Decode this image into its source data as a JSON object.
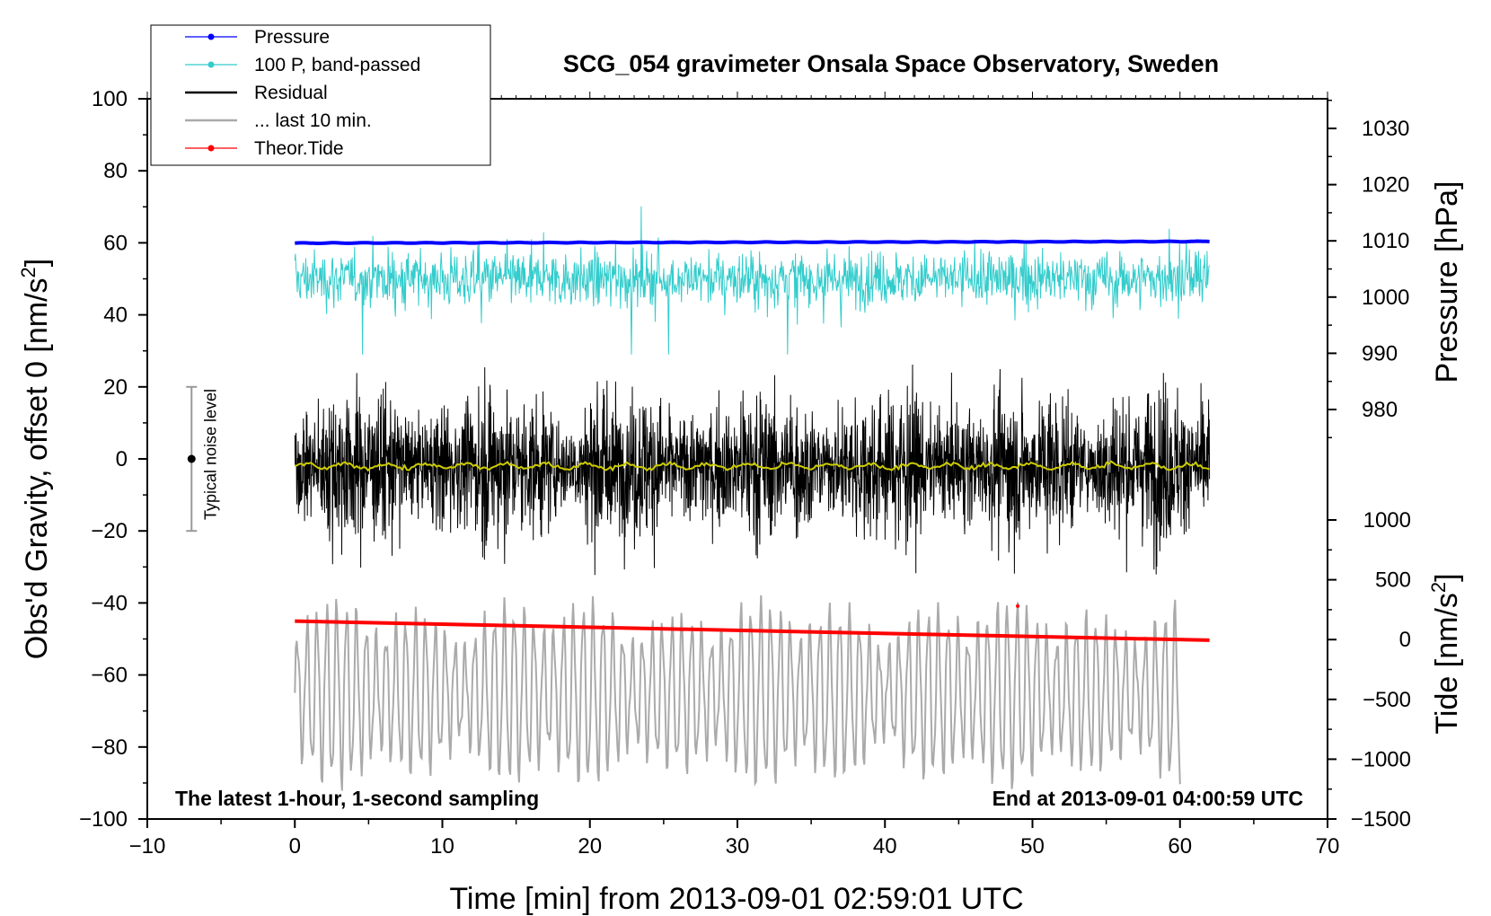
{
  "chart_data": {
    "type": "line",
    "title": "SCG_054 gravimeter Onsala Space Observatory, Sweden",
    "xlabel": "Time [min] from 2013-09-01 02:59:01 UTC",
    "ylabel_left_prefix": "Obs'd Gravity, offset 0 [nm/s",
    "ylabel_left_sup": "2",
    "ylabel_left_suffix": "]",
    "ylabel_pressure": "Pressure [hPa]",
    "ylabel_tide_prefix": "Tide [nm/s",
    "ylabel_tide_sup": "2",
    "ylabel_tide_suffix": "]",
    "xlim": [
      -10,
      70
    ],
    "ylim_left": [
      -100,
      100
    ],
    "x_ticks": [
      -10,
      0,
      10,
      20,
      30,
      40,
      50,
      60,
      70
    ],
    "x_tick_labels": [
      "−10",
      "0",
      "10",
      "20",
      "30",
      "40",
      "50",
      "60",
      "70"
    ],
    "y_left_ticks": [
      -100,
      -80,
      -60,
      -40,
      -20,
      0,
      20,
      40,
      60,
      80,
      100
    ],
    "y_left_tick_labels": [
      "−100",
      "−80",
      "−60",
      "−40",
      "−20",
      "0",
      "20",
      "40",
      "60",
      "80",
      "100"
    ],
    "pressure_axis": {
      "range": [
        970,
        1035
      ],
      "ticks": [
        980,
        990,
        1000,
        1010,
        1020,
        1030
      ],
      "tick_labels": [
        "980",
        "990",
        "1000",
        "1010",
        "1020",
        "1030"
      ]
    },
    "tide_axis": {
      "range": [
        -1500,
        1200
      ],
      "ticks": [
        -1500,
        -1000,
        -500,
        0,
        500,
        1000
      ],
      "tick_labels": [
        "−1500",
        "−1000",
        "−500",
        "0",
        "500",
        "1000"
      ]
    },
    "series": [
      {
        "name": "Pressure",
        "color": "#0000ff",
        "axis": "pressure",
        "x_range": [
          0,
          62
        ],
        "description": "nearly flat",
        "start": 1009.6,
        "end": 1009.9
      },
      {
        "name": "100 P, band-passed",
        "color": "#33cccc",
        "axis": "left",
        "x_range": [
          0,
          62
        ],
        "center": 50,
        "amplitude_typical": 6,
        "min": 29,
        "max": 71
      },
      {
        "name": "Residual",
        "color": "#000000",
        "axis": "left",
        "x_range": [
          0,
          62
        ],
        "center": -2,
        "amplitude_typical": 12,
        "min": -41,
        "max": 37
      },
      {
        "name": "... last 10 min.",
        "color": "#aaaaaa",
        "axis": "left",
        "x_range": [
          0,
          60
        ],
        "center": -65,
        "amplitude_typical": 15,
        "min": -93,
        "max": -30
      },
      {
        "name": "Theor.Tide",
        "color": "#ff0000",
        "axis": "tide",
        "x_range": [
          0,
          62
        ],
        "start": 155,
        "end": -5,
        "outlier_x": 49,
        "outlier_y": 280
      },
      {
        "name": "smoothed residual",
        "color": "#cccc00",
        "axis": "left",
        "x_range": [
          0,
          62
        ],
        "center": -2
      }
    ],
    "noise_level": {
      "label": "Typical noise level",
      "x": -7,
      "center": 0,
      "low": -20,
      "high": 20
    },
    "annotation_left": "The latest 1-hour, 1-second sampling",
    "annotation_right": "End at 2013-09-01 04:00:59 UTC",
    "legend": [
      {
        "label": "Pressure",
        "color": "#0000ff",
        "marker": true
      },
      {
        "label": "100 P, band-passed",
        "color": "#33cccc",
        "marker": true
      },
      {
        "label": "Residual",
        "color": "#000000",
        "marker": false
      },
      {
        "label": "... last 10 min.",
        "color": "#aaaaaa",
        "marker": false
      },
      {
        "label": "Theor.Tide",
        "color": "#ff0000",
        "marker": true
      }
    ]
  }
}
